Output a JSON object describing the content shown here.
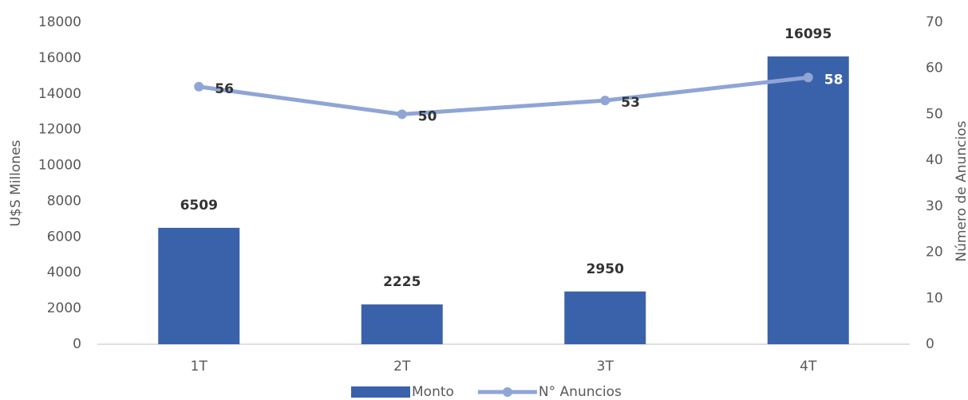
{
  "chart_data": {
    "type": "bar",
    "categories": [
      "1T",
      "2T",
      "3T",
      "4T"
    ],
    "ylabel": "U$S Millones",
    "y2label": "Número de Anuncios",
    "series": [
      {
        "name": "Monto",
        "type": "bar",
        "color": "#3a62aa",
        "values": [
          6509,
          2225,
          2950,
          16095
        ]
      },
      {
        "name": "N° Anuncios",
        "type": "line",
        "color": "#8fa5d6",
        "axis": "y2",
        "values": [
          56,
          50,
          53,
          58
        ]
      }
    ],
    "ylim": [
      0,
      18000
    ],
    "yticks": [
      0,
      2000,
      4000,
      6000,
      8000,
      10000,
      12000,
      14000,
      16000,
      18000
    ],
    "y2lim": [
      0,
      70
    ],
    "y2ticks": [
      0,
      10,
      20,
      30,
      40,
      50,
      60,
      70
    ],
    "grid": false,
    "legend": "bottom"
  }
}
